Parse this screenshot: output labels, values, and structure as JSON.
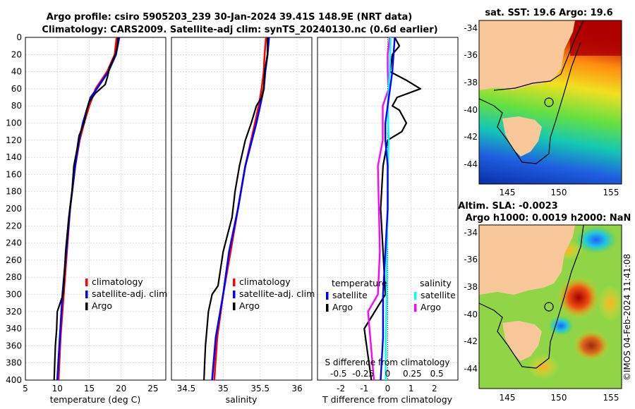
{
  "title": {
    "line1": "Argo profile: csiro 5905203_239 30-Jan-2024 39.41S 148.9E (NRT data)",
    "line2": "Climatology: CARS2009. Satellite-adj clim: synTS_20240130.nc (0.6d earlier)"
  },
  "colors": {
    "clim": "#ff0000",
    "sat": "#0000ff",
    "argo": "#000000",
    "sat_s": "#00ffff",
    "argo_s": "#ff00ff"
  },
  "chart_data": [
    {
      "type": "line",
      "name": "temperature",
      "xlabel": "temperature (deg C)",
      "ylim": [
        400,
        0
      ],
      "xlim": [
        5,
        27
      ],
      "xticks": [
        "5",
        "10",
        "15",
        "20",
        "25"
      ],
      "yticks": [
        "0",
        "20",
        "40",
        "60",
        "80",
        "100",
        "120",
        "140",
        "160",
        "180",
        "200",
        "220",
        "240",
        "260",
        "280",
        "300",
        "320",
        "340",
        "360",
        "380",
        "400"
      ],
      "legend": [
        "climatology",
        "satellite-adj. clim",
        "Argo"
      ],
      "series": [
        {
          "name": "climatology",
          "depth": [
            0,
            20,
            40,
            60,
            70,
            80,
            100,
            120,
            150,
            200,
            250,
            300,
            350,
            400
          ],
          "values": [
            19.3,
            19.0,
            17.8,
            16.0,
            15.5,
            15.0,
            14.2,
            13.5,
            12.8,
            12.0,
            11.5,
            11.0,
            10.5,
            10.2
          ]
        },
        {
          "name": "satellite-adj. clim",
          "depth": [
            0,
            20,
            40,
            60,
            70,
            80,
            100,
            120,
            150,
            200,
            250,
            300,
            350,
            400
          ],
          "values": [
            19.7,
            19.2,
            18.0,
            16.2,
            15.2,
            14.8,
            14.0,
            13.4,
            12.8,
            12.0,
            11.4,
            10.8,
            10.4,
            10.0
          ]
        },
        {
          "name": "Argo",
          "depth": [
            0,
            10,
            20,
            35,
            45,
            55,
            65,
            75,
            85,
            100,
            115,
            130,
            150,
            180,
            210,
            250,
            290,
            300,
            320,
            340,
            360,
            380,
            400
          ],
          "values": [
            19.5,
            19.4,
            19.1,
            18.2,
            17.9,
            17.5,
            16.0,
            15.0,
            14.6,
            14.2,
            13.4,
            13.1,
            12.6,
            12.3,
            11.8,
            11.3,
            11.0,
            10.9,
            10.0,
            9.9,
            9.7,
            9.6,
            9.5
          ]
        }
      ]
    },
    {
      "type": "line",
      "name": "salinity",
      "xlabel": "salinity",
      "ylim": [
        400,
        0
      ],
      "xlim": [
        34.3,
        36.2
      ],
      "xticks": [
        "34.5",
        "35",
        "35.5",
        "36"
      ],
      "legend": [
        "climatology",
        "satellite-adj. clim",
        "Argo"
      ],
      "series": [
        {
          "name": "climatology",
          "depth": [
            0,
            20,
            40,
            60,
            80,
            100,
            150,
            200,
            250,
            300,
            350,
            400
          ],
          "values": [
            35.58,
            35.56,
            35.55,
            35.52,
            35.48,
            35.43,
            35.3,
            35.2,
            35.1,
            35.0,
            34.92,
            34.88
          ]
        },
        {
          "name": "satellite-adj. clim",
          "depth": [
            0,
            20,
            40,
            60,
            80,
            100,
            150,
            200,
            250,
            300,
            350,
            400
          ],
          "values": [
            35.62,
            35.6,
            35.57,
            35.55,
            35.5,
            35.45,
            35.3,
            35.2,
            35.08,
            35.0,
            34.9,
            34.85
          ]
        },
        {
          "name": "Argo",
          "depth": [
            0,
            20,
            40,
            60,
            70,
            80,
            100,
            120,
            150,
            180,
            210,
            250,
            290,
            300,
            320,
            340,
            360,
            380,
            400
          ],
          "values": [
            35.6,
            35.6,
            35.56,
            35.55,
            35.52,
            35.45,
            35.38,
            35.3,
            35.22,
            35.16,
            35.12,
            35.0,
            34.93,
            34.85,
            34.8,
            34.78,
            34.76,
            34.75,
            34.74
          ]
        }
      ]
    },
    {
      "type": "line",
      "name": "differences",
      "xlabel": "T difference from climatology",
      "ylim": [
        400,
        0
      ],
      "xlim": [
        -3,
        3
      ],
      "xticks": [
        "-2",
        "-1",
        "0",
        "1",
        "2"
      ],
      "x2label": "S difference from climatology",
      "x2ticks": [
        "-0.5",
        "-0.25",
        "0",
        "0.25",
        "0.5"
      ],
      "legend_t_title": "temperature",
      "legend_s_title": "salinity",
      "legend_t": [
        "satellite",
        "Argo"
      ],
      "legend_s": [
        "satellite",
        "Argo"
      ],
      "series": [
        {
          "name": "T satellite",
          "depth": [
            0,
            40,
            80,
            100,
            120,
            150,
            200,
            250,
            300,
            350,
            400
          ],
          "values": [
            0.3,
            0.2,
            0.0,
            -0.1,
            -0.1,
            0.0,
            0.0,
            -0.1,
            -0.2,
            -0.2,
            -0.3
          ]
        },
        {
          "name": "T Argo",
          "depth": [
            0,
            10,
            20,
            40,
            50,
            60,
            70,
            80,
            85,
            100,
            110,
            120,
            150,
            200,
            250,
            300,
            340,
            360,
            380,
            400
          ],
          "values": [
            0.3,
            0.5,
            0.2,
            0.1,
            0.8,
            1.4,
            0.4,
            0.2,
            0.5,
            0.8,
            0.6,
            0.0,
            -0.2,
            -0.3,
            -0.2,
            -0.1,
            -1.0,
            -0.9,
            -0.8,
            -0.7
          ]
        },
        {
          "name": "S satellite",
          "depth": [
            0,
            40,
            80,
            120,
            160,
            200,
            250,
            300,
            350,
            400
          ],
          "values": [
            0.03,
            0.02,
            0.0,
            0.01,
            0.0,
            0.0,
            -0.01,
            -0.01,
            -0.02,
            -0.02
          ]
        },
        {
          "name": "S Argo",
          "depth": [
            0,
            20,
            40,
            60,
            80,
            100,
            120,
            150,
            200,
            250,
            300,
            320,
            400
          ],
          "values": [
            0.02,
            0.0,
            0.0,
            0.01,
            -0.05,
            -0.05,
            -0.05,
            -0.1,
            -0.09,
            -0.08,
            -0.1,
            -0.2,
            -0.14
          ]
        }
      ]
    },
    {
      "type": "heatmap",
      "name": "sst_map",
      "title": "sat. SST: 19.6 Argo: 19.6",
      "xticks": [
        "145",
        "150",
        "155"
      ],
      "yticks": [
        "-34",
        "-36",
        "-38",
        "-40",
        "-42",
        "-44"
      ]
    },
    {
      "type": "heatmap",
      "name": "sla_map",
      "title1": "Altim. SLA: -0.0023",
      "title2": "Argo h1000: 0.0019 h2000: NaN",
      "xticks": [
        "145",
        "150",
        "155"
      ],
      "yticks": [
        "-34",
        "-36",
        "-38",
        "-40",
        "-42",
        "-44"
      ]
    }
  ],
  "stamp": "©IMOS 04-Feb-2024 11:41:08"
}
